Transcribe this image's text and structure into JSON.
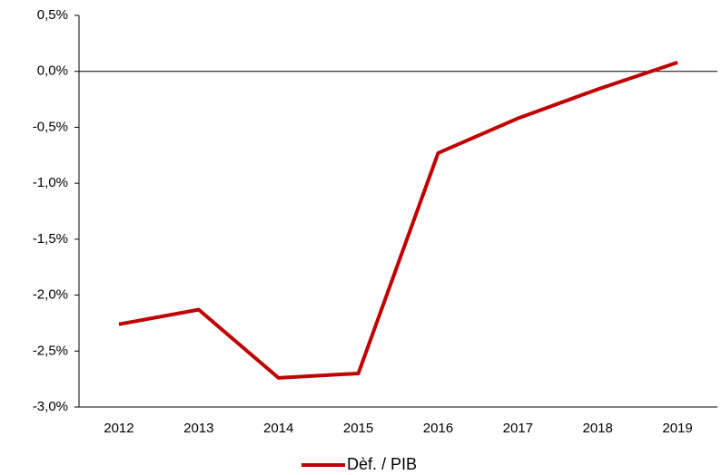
{
  "chart_data": {
    "type": "line",
    "categories": [
      "2012",
      "2013",
      "2014",
      "2015",
      "2016",
      "2017",
      "2018",
      "2019"
    ],
    "series": [
      {
        "name": "Dèf. / PIB",
        "color": "#c00000",
        "values": [
          -2.26,
          -2.13,
          -2.74,
          -2.7,
          -0.73,
          -0.42,
          -0.16,
          0.08
        ]
      }
    ],
    "ylim": [
      -3.0,
      0.5
    ],
    "yticks": [
      {
        "value": -3.0,
        "label": "-3,0%"
      },
      {
        "value": -2.5,
        "label": "-2,5%"
      },
      {
        "value": -2.0,
        "label": "-2,0%"
      },
      {
        "value": -1.5,
        "label": "-1,5%"
      },
      {
        "value": -1.0,
        "label": "-1,0%"
      },
      {
        "value": -0.5,
        "label": "-0,5%"
      },
      {
        "value": 0.0,
        "label": "0,0%"
      },
      {
        "value": 0.5,
        "label": "0,5%"
      }
    ],
    "legend": "bottom"
  }
}
